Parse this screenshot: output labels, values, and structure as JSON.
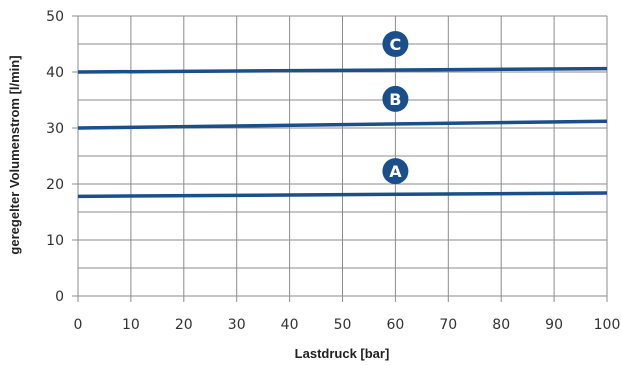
{
  "chart_data": {
    "type": "line",
    "xlabel": "Lastdruck [bar]",
    "ylabel": "geregelter Volumenstrom [l/min]",
    "xlim": [
      0,
      100
    ],
    "ylim": [
      0,
      50
    ],
    "x_ticks": [
      "0",
      "10",
      "20",
      "30",
      "40",
      "50",
      "60",
      "70",
      "80",
      "90",
      "100"
    ],
    "y_ticks": [
      "0",
      "10",
      "20",
      "30",
      "40",
      "50"
    ],
    "grid": true,
    "line_color": "#1a4f8c",
    "series": [
      {
        "name": "A",
        "x": [
          0,
          100
        ],
        "values": [
          17.8,
          18.4
        ],
        "marker_x": 60,
        "marker_y": 22.3
      },
      {
        "name": "B",
        "x": [
          0,
          100
        ],
        "values": [
          30.0,
          31.2
        ],
        "marker_x": 60,
        "marker_y": 35.2
      },
      {
        "name": "C",
        "x": [
          0,
          100
        ],
        "values": [
          40.0,
          40.6
        ],
        "marker_x": 60,
        "marker_y": 45.0
      }
    ]
  }
}
